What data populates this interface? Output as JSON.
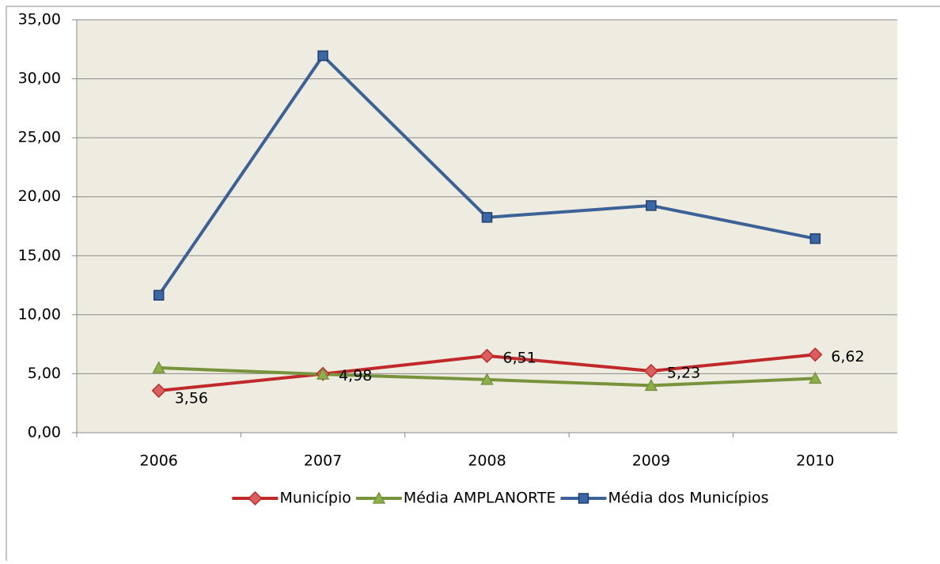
{
  "chart_data": {
    "type": "line",
    "categories": [
      "2006",
      "2007",
      "2008",
      "2009",
      "2010"
    ],
    "series": [
      {
        "name": "Município",
        "color": "#c0282a",
        "marker": "diamond",
        "marker_color": "#d9605e",
        "values": [
          3.56,
          4.98,
          6.51,
          5.23,
          6.62
        ],
        "value_labels": [
          "3,56",
          "4,98",
          "6,51",
          "5,23",
          "6,62"
        ]
      },
      {
        "name": "Média AMPLANORTE",
        "color": "#77933c",
        "marker": "triangle",
        "marker_color": "#8db04a",
        "values": [
          5.5,
          4.95,
          4.5,
          4.0,
          4.6
        ]
      },
      {
        "name": "Média dos Municípios",
        "color": "#3b6196",
        "marker": "square",
        "marker_color": "#3a67a8",
        "values": [
          11.65,
          31.95,
          18.25,
          19.25,
          16.45
        ]
      }
    ],
    "ylim": [
      0,
      35
    ],
    "yticks": [
      {
        "value": 0,
        "label": "0,00"
      },
      {
        "value": 5,
        "label": "5,00"
      },
      {
        "value": 10,
        "label": "10,00"
      },
      {
        "value": 15,
        "label": "15,00"
      },
      {
        "value": 20,
        "label": "20,00"
      },
      {
        "value": 25,
        "label": "25,00"
      },
      {
        "value": 30,
        "label": "30,00"
      },
      {
        "value": 35,
        "label": "35,00"
      }
    ],
    "grid": true,
    "legend": "bottom",
    "plot_background": "#eeebe0"
  }
}
